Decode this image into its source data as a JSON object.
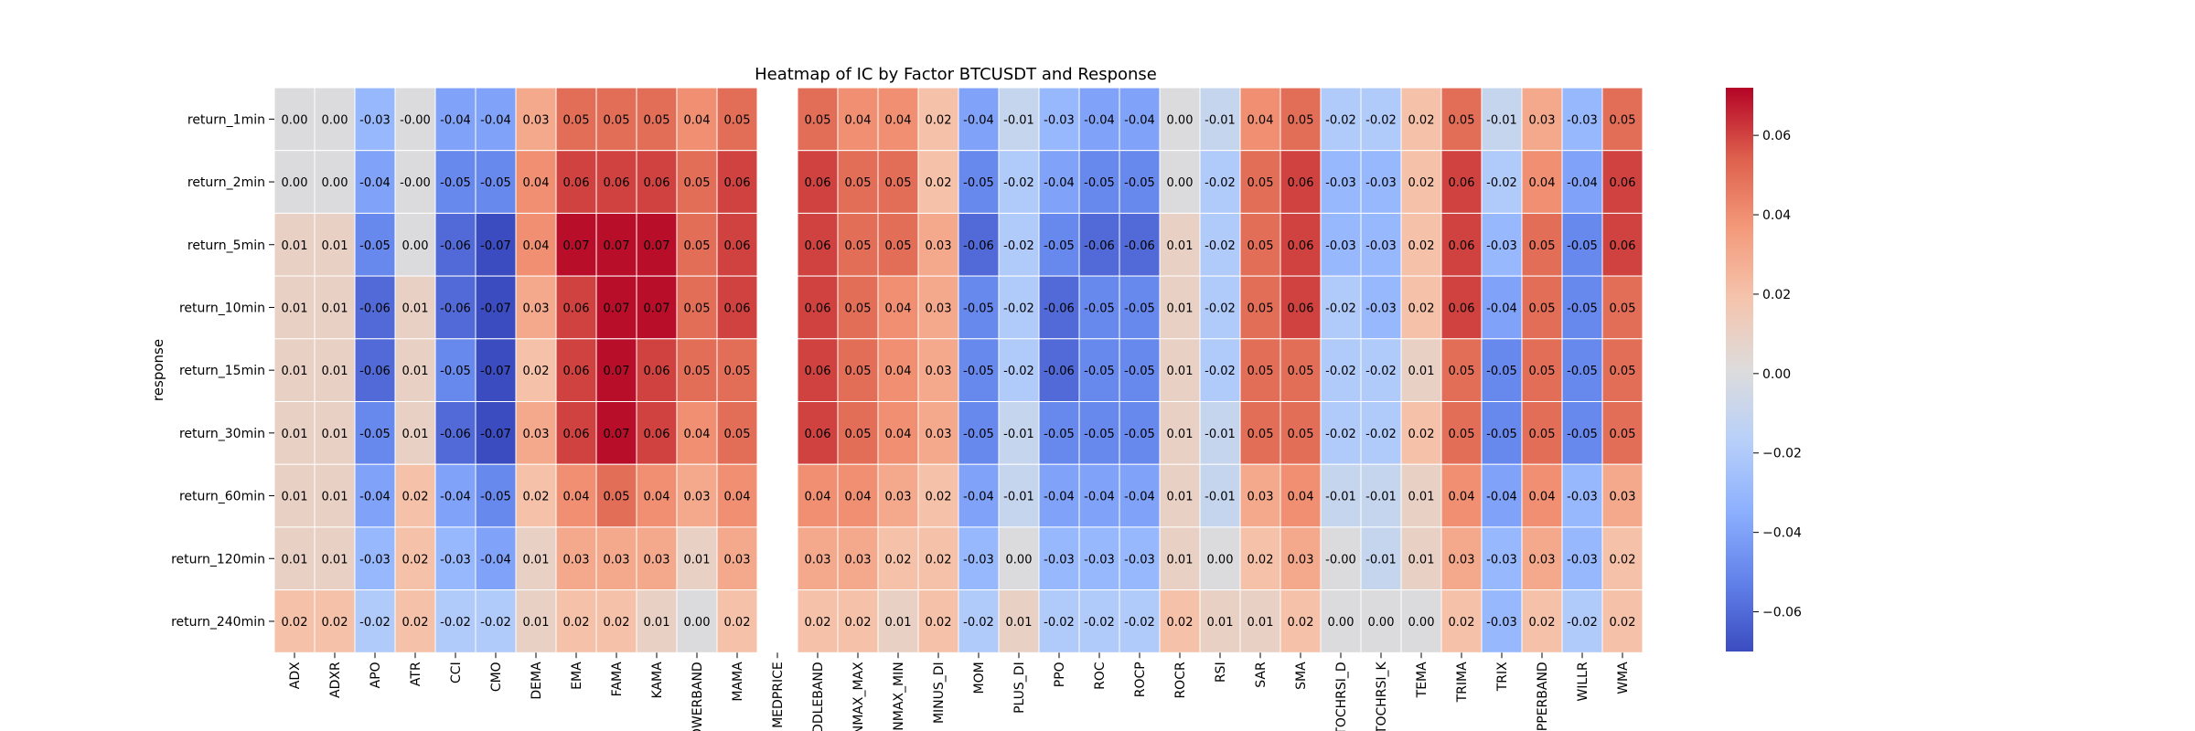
{
  "chart_data": {
    "type": "heatmap",
    "title": "Heatmap of IC by Factor BTCUSDT and Response",
    "xlabel": "",
    "ylabel": "response",
    "columns": [
      "ADX",
      "ADXR",
      "APO",
      "ATR",
      "CCI",
      "CMO",
      "DEMA",
      "EMA",
      "FAMA",
      "KAMA",
      "LOWERBAND",
      "MAMA",
      "MEDPRICE",
      "MIDDLEBAND",
      "MINMAX_MAX",
      "MINMAX_MIN",
      "MINUS_DI",
      "MOM",
      "PLUS_DI",
      "PPO",
      "ROC",
      "ROCP",
      "ROCR",
      "RSI",
      "SAR",
      "SMA",
      "STOCHRSI_D",
      "STOCHRSI_K",
      "TEMA",
      "TRIMA",
      "TRIX",
      "UPPERBAND",
      "WILLR",
      "WMA"
    ],
    "rows": [
      "return_1min",
      "return_2min",
      "return_5min",
      "return_10min",
      "return_15min",
      "return_30min",
      "return_60min",
      "return_120min",
      "return_240min"
    ],
    "values": [
      [
        0.0,
        0.0,
        -0.03,
        -0.0,
        -0.04,
        -0.04,
        0.03,
        0.05,
        0.05,
        0.05,
        0.04,
        0.05,
        null,
        0.05,
        0.04,
        0.04,
        0.02,
        -0.04,
        -0.01,
        -0.03,
        -0.04,
        -0.04,
        0.0,
        -0.01,
        0.04,
        0.05,
        -0.02,
        -0.02,
        0.02,
        0.05,
        -0.01,
        0.03,
        -0.03,
        0.05
      ],
      [
        0.0,
        0.0,
        -0.04,
        -0.0,
        -0.05,
        -0.05,
        0.04,
        0.06,
        0.06,
        0.06,
        0.05,
        0.06,
        null,
        0.06,
        0.05,
        0.05,
        0.02,
        -0.05,
        -0.02,
        -0.04,
        -0.05,
        -0.05,
        0.0,
        -0.02,
        0.05,
        0.06,
        -0.03,
        -0.03,
        0.02,
        0.06,
        -0.02,
        0.04,
        -0.04,
        0.06
      ],
      [
        0.01,
        0.01,
        -0.05,
        0.0,
        -0.06,
        -0.07,
        0.04,
        0.07,
        0.07,
        0.07,
        0.05,
        0.06,
        null,
        0.06,
        0.05,
        0.05,
        0.03,
        -0.06,
        -0.02,
        -0.05,
        -0.06,
        -0.06,
        0.01,
        -0.02,
        0.05,
        0.06,
        -0.03,
        -0.03,
        0.02,
        0.06,
        -0.03,
        0.05,
        -0.05,
        0.06
      ],
      [
        0.01,
        0.01,
        -0.06,
        0.01,
        -0.06,
        -0.07,
        0.03,
        0.06,
        0.07,
        0.07,
        0.05,
        0.06,
        null,
        0.06,
        0.05,
        0.04,
        0.03,
        -0.05,
        -0.02,
        -0.06,
        -0.05,
        -0.05,
        0.01,
        -0.02,
        0.05,
        0.06,
        -0.02,
        -0.03,
        0.02,
        0.06,
        -0.04,
        0.05,
        -0.05,
        0.05
      ],
      [
        0.01,
        0.01,
        -0.06,
        0.01,
        -0.05,
        -0.07,
        0.02,
        0.06,
        0.07,
        0.06,
        0.05,
        0.05,
        null,
        0.06,
        0.05,
        0.04,
        0.03,
        -0.05,
        -0.02,
        -0.06,
        -0.05,
        -0.05,
        0.01,
        -0.02,
        0.05,
        0.05,
        -0.02,
        -0.02,
        0.01,
        0.05,
        -0.05,
        0.05,
        -0.05,
        0.05
      ],
      [
        0.01,
        0.01,
        -0.05,
        0.01,
        -0.06,
        -0.07,
        0.03,
        0.06,
        0.07,
        0.06,
        0.04,
        0.05,
        null,
        0.06,
        0.05,
        0.04,
        0.03,
        -0.05,
        -0.01,
        -0.05,
        -0.05,
        -0.05,
        0.01,
        -0.01,
        0.05,
        0.05,
        -0.02,
        -0.02,
        0.02,
        0.05,
        -0.05,
        0.05,
        -0.05,
        0.05
      ],
      [
        0.01,
        0.01,
        -0.04,
        0.02,
        -0.04,
        -0.05,
        0.02,
        0.04,
        0.05,
        0.04,
        0.03,
        0.04,
        null,
        0.04,
        0.04,
        0.03,
        0.02,
        -0.04,
        -0.01,
        -0.04,
        -0.04,
        -0.04,
        0.01,
        -0.01,
        0.03,
        0.04,
        -0.01,
        -0.01,
        0.01,
        0.04,
        -0.04,
        0.04,
        -0.03,
        0.03
      ],
      [
        0.01,
        0.01,
        -0.03,
        0.02,
        -0.03,
        -0.04,
        0.01,
        0.03,
        0.03,
        0.03,
        0.01,
        0.03,
        null,
        0.03,
        0.03,
        0.02,
        0.02,
        -0.03,
        0.0,
        -0.03,
        -0.03,
        -0.03,
        0.01,
        0.0,
        0.02,
        0.03,
        -0.0,
        -0.01,
        0.01,
        0.03,
        -0.03,
        0.03,
        -0.03,
        0.02
      ],
      [
        0.02,
        0.02,
        -0.02,
        0.02,
        -0.02,
        -0.02,
        0.01,
        0.02,
        0.02,
        0.01,
        0.0,
        0.02,
        null,
        0.02,
        0.02,
        0.01,
        0.02,
        -0.02,
        0.01,
        -0.02,
        -0.02,
        -0.02,
        0.02,
        0.01,
        0.01,
        0.02,
        0.0,
        0.0,
        0.0,
        0.02,
        -0.03,
        0.02,
        -0.02,
        0.02
      ]
    ],
    "colorbar": {
      "colormap": "coolwarm",
      "vmin": -0.07,
      "vmax": 0.072,
      "ticks": [
        -0.06,
        -0.04,
        -0.02,
        0.0,
        0.02,
        0.04,
        0.06
      ],
      "tick_labels": [
        "−0.06",
        "−0.04",
        "−0.02",
        "0.00",
        "0.02",
        "0.04",
        "0.06"
      ]
    },
    "format": "%.2f",
    "grid_lines": "white"
  }
}
